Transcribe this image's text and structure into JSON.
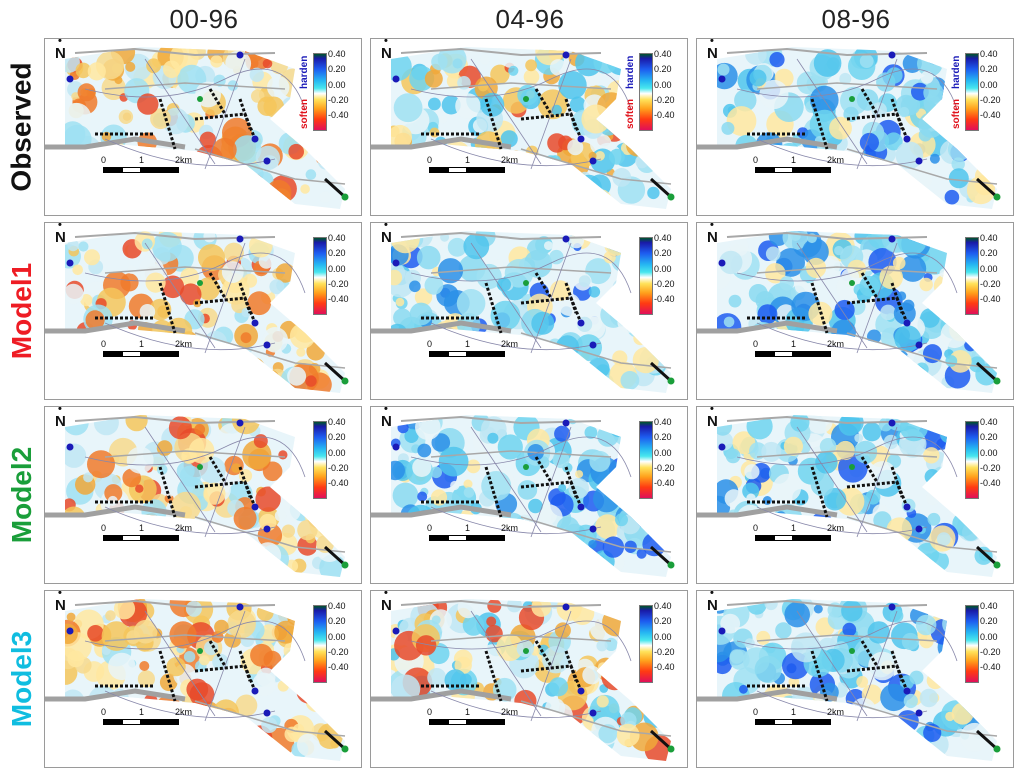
{
  "columns": [
    "00-96",
    "04-96",
    "08-96"
  ],
  "rows": [
    {
      "label": "Observed",
      "color": "#111111"
    },
    {
      "label": "Model1",
      "color": "#ee1c24"
    },
    {
      "label": "Model2",
      "color": "#1a9e3a"
    },
    {
      "label": "Model3",
      "color": "#10bde0"
    }
  ],
  "north_label": "N",
  "colorbar_ticks": [
    "0.40",
    "0.20",
    "0.00",
    "-0.20",
    "-0.40"
  ],
  "harden_label": "harden",
  "soften_label": "soften",
  "scale_labels": [
    "0",
    "1",
    "2km"
  ]
}
